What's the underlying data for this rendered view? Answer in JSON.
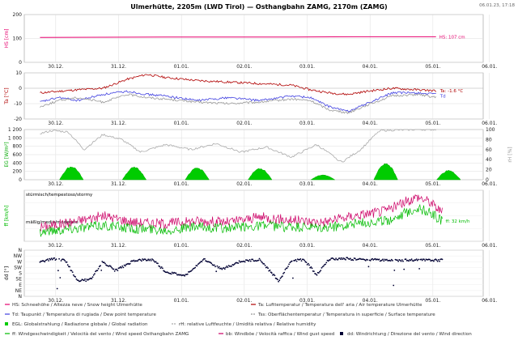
{
  "title": "Ulmerhütte, 2205m (LWD Tirol) — Osthangbahn ZAMG, 2170m (ZAMG)",
  "timestamp": "06.01.23, 17:18",
  "chart_data": [
    {
      "type": "line",
      "ylabel": "HS [cm]",
      "ylim": [
        0,
        200
      ],
      "yticks": [
        0,
        100,
        200
      ],
      "x_ticks": [
        "30.12.",
        "31.12.",
        "01.01.",
        "02.01.",
        "03.01.",
        "04.01.",
        "05.01.",
        "06.01."
      ],
      "series": [
        {
          "name": "HS: Schneehöhe / Altezza neve / Snow height Ulmerhütte",
          "color": "#e6006e",
          "x": [
            0,
            1,
            2,
            3,
            4,
            5,
            6,
            6.3
          ],
          "values": [
            104,
            105,
            106,
            106,
            106,
            107,
            107,
            107
          ]
        }
      ],
      "annotations": [
        {
          "text": "HS: 107 cm",
          "color": "#e6006e"
        }
      ]
    },
    {
      "type": "line",
      "ylabel": "Ta [°C]",
      "ylim": [
        -20,
        10
      ],
      "yticks": [
        -20,
        -10,
        0,
        10
      ],
      "x_ticks": [
        "30.12.",
        "31.12.",
        "01.01.",
        "02.01.",
        "03.01.",
        "04.01.",
        "05.01.",
        "06.01."
      ],
      "series": [
        {
          "name": "Ta: Lufttemperatur / Temperatura dell' aria / Air temperature Ulmerhütte",
          "color": "#b00000",
          "x": [
            0,
            0.3,
            0.6,
            1.0,
            1.4,
            1.7,
            2.0,
            2.5,
            3.0,
            3.5,
            4.0,
            4.3,
            4.6,
            4.9,
            5.2,
            5.6,
            6.0,
            6.3
          ],
          "values": [
            -3,
            -2,
            -1,
            0,
            6,
            9,
            7,
            5,
            4,
            3,
            2,
            -1,
            -3,
            -4,
            -2,
            0,
            -1,
            -1.6
          ]
        },
        {
          "name": "Td: Taupunkt / Temperatura di rugiada / Dew point temperature",
          "color": "#4040e0",
          "x": [
            0,
            0.3,
            0.6,
            1.0,
            1.4,
            1.7,
            2.0,
            2.5,
            3.0,
            3.5,
            4.0,
            4.3,
            4.6,
            4.9,
            5.2,
            5.6,
            6.0,
            6.3
          ],
          "values": [
            -9,
            -6,
            -8,
            -4,
            -2,
            -4,
            -5,
            -8,
            -6,
            -8,
            -5,
            -6,
            -12,
            -15,
            -10,
            -3,
            -3,
            -4
          ]
        },
        {
          "name": "Tss: Oberflächentemperatur / Temperatura in superficie / Surface temperature",
          "color": "#999999",
          "x": [
            0,
            0.3,
            0.6,
            1.0,
            1.4,
            1.7,
            2.0,
            2.5,
            3.0,
            3.5,
            4.0,
            4.3,
            4.6,
            4.9,
            5.2,
            5.6,
            6.0,
            6.3
          ],
          "values": [
            -12,
            -8,
            -6,
            -9,
            -4,
            -6,
            -7,
            -9,
            -10,
            -9,
            -7,
            -8,
            -14,
            -16,
            -11,
            -5,
            -4,
            -6
          ]
        }
      ],
      "annotations": [
        {
          "text": "Ta: -1.6 °C",
          "color": "#b00000"
        },
        {
          "text": "Td",
          "color": "#4040e0"
        }
      ]
    },
    {
      "type": "area",
      "ylabel": "EG [W/m²]",
      "ylabel_right": "rH [%]",
      "ylim": [
        0,
        1200
      ],
      "yticks": [
        0,
        200,
        400,
        600,
        800,
        1000,
        1200
      ],
      "ylim_right": [
        0,
        100
      ],
      "yticks_right": [
        0,
        20,
        40,
        60,
        80,
        100
      ],
      "x_ticks": [
        "30.12.",
        "31.12.",
        "01.01.",
        "02.01.",
        "03.01.",
        "04.01.",
        "05.01.",
        "06.01."
      ],
      "series": [
        {
          "name": "EGL: Globalstrahlung / Radiazione globale / Global radiation",
          "color": "#00cc00",
          "peak_x": [
            0.5,
            1.5,
            2.5,
            3.5,
            4.5,
            5.5,
            6.5
          ],
          "peak_values": [
            330,
            310,
            300,
            290,
            120,
            420,
            230
          ]
        },
        {
          "name": "rH: relative Luftfeuchte / Umidità relativa / Relative humidity",
          "color": "#aaaaaa",
          "x": [
            0,
            0.2,
            0.45,
            0.7,
            1.0,
            1.3,
            1.6,
            2.0,
            2.4,
            2.8,
            3.2,
            3.6,
            4.0,
            4.4,
            4.8,
            5.1,
            5.4,
            6.0,
            6.3
          ],
          "values": [
            92,
            98,
            95,
            60,
            90,
            80,
            55,
            70,
            60,
            72,
            55,
            65,
            45,
            70,
            35,
            60,
            98,
            100,
            100
          ]
        }
      ]
    },
    {
      "type": "line",
      "ylabel": "ff [km/h]",
      "ylim": [
        0,
        100
      ],
      "x_ticks": [
        "30.12.",
        "31.12.",
        "01.01.",
        "02.01.",
        "03.01.",
        "04.01.",
        "05.01.",
        "06.01."
      ],
      "levels": [
        "stürmisch/tempestoso/stormy",
        "mäßig/medio/moderate"
      ],
      "series": [
        {
          "name": "ff: Windgeschwindigkeit / Velocità del vento / Wind speed Osthangbahn ZAMG",
          "color": "#00bb00",
          "x": [
            0,
            0.5,
            1.0,
            1.5,
            2.0,
            2.5,
            3.0,
            3.5,
            4.0,
            4.5,
            5.0,
            5.5,
            6.0,
            6.2,
            6.4
          ],
          "values": [
            15,
            20,
            25,
            20,
            18,
            22,
            20,
            25,
            22,
            20,
            28,
            32,
            52,
            45,
            32
          ]
        },
        {
          "name": "bb: Windböe / Velocità raffica / Wind gust speed",
          "color": "#cc0066",
          "x": [
            0,
            0.5,
            1.0,
            1.5,
            2.0,
            2.5,
            3.0,
            3.5,
            4.0,
            4.5,
            5.0,
            5.5,
            6.0,
            6.2,
            6.4
          ],
          "values": [
            22,
            30,
            40,
            30,
            28,
            32,
            30,
            38,
            33,
            30,
            40,
            48,
            70,
            62,
            45
          ]
        }
      ],
      "annotations": [
        {
          "text": "ff: 32 km/h",
          "color": "#00bb00"
        }
      ]
    },
    {
      "type": "scatter",
      "ylabel": "dd [°]",
      "ytick_labels": [
        "N",
        "NW",
        "W",
        "SW",
        "S",
        "SE",
        "E",
        "NE",
        "N"
      ],
      "x_ticks": [
        "30.12.",
        "31.12.",
        "01.01.",
        "02.01.",
        "03.01.",
        "04.01.",
        "05.01.",
        "06.01."
      ],
      "series": [
        {
          "name": "dd: Windrichtung / Direzione del vento / Wind direction",
          "color": "#000033",
          "x": [
            0.0,
            0.2,
            0.4,
            0.6,
            0.8,
            1.0,
            1.2,
            1.5,
            1.8,
            2.0,
            2.3,
            2.6,
            2.9,
            3.2,
            3.5,
            3.8,
            4.0,
            4.2,
            4.4,
            4.6,
            4.8,
            5.0,
            5.3,
            5.6,
            5.9,
            6.2,
            6.4
          ],
          "values": [
            270,
            292,
            280,
            120,
            130,
            270,
            200,
            280,
            285,
            190,
            160,
            290,
            210,
            275,
            285,
            120,
            280,
            285,
            170,
            290,
            295,
            290,
            285,
            280,
            282,
            280,
            282
          ]
        }
      ]
    }
  ],
  "legend": {
    "row1": [
      "HS: Schneehöhe / Altezza neve / Snow height Ulmerhütte",
      "Ta: Lufttemperatur / Temperatura dell' aria / Air temperature Ulmerhütte"
    ],
    "row2": [
      "Td: Taupunkt / Temperatura di rugiada / Dew point temperature",
      "Tss: Oberflächentemperatur / Temperatura in superficie / Surface temperature"
    ],
    "row3": [
      "EGL: Globalstrahlung / Radiazione globale / Global radiation",
      "rH: relative Luftfeuchte / Umidità relativa / Relative humidity"
    ],
    "row4": [
      "ff: Windgeschwindigkeit / Velocità del vento / Wind speed Osthangbahn ZAMG",
      "bb: Windböe / Velocità raffica / Wind gust speed",
      "dd: Windrichtung / Direzione del vento / Wind direction"
    ]
  },
  "colors": {
    "hs": "#e6006e",
    "ta": "#b00000",
    "td": "#4040e0",
    "tss": "#999999",
    "egl": "#00cc00",
    "rh": "#aaaaaa",
    "ff": "#00bb00",
    "bb": "#cc0066",
    "dd": "#000033",
    "axis_left_hs": "#e6006e",
    "axis_left_ta": "#b00000",
    "axis_left_egl": "#00aa00"
  }
}
